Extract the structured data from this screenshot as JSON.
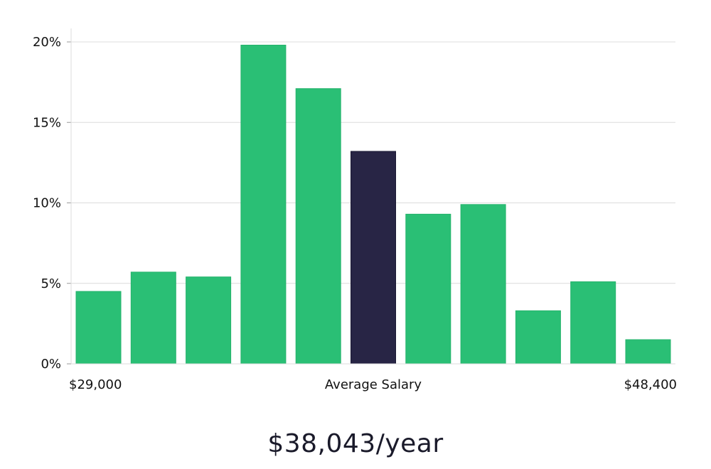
{
  "chart_data": {
    "type": "bar",
    "title": "",
    "xlabel": "Average Salary",
    "ylabel": "",
    "x_start_label": "$29,000",
    "x_end_label": "$48,400",
    "ylim": [
      0,
      20
    ],
    "yticks": [
      {
        "value": 0,
        "label": "0%"
      },
      {
        "value": 5,
        "label": "5%"
      },
      {
        "value": 10,
        "label": "10%"
      },
      {
        "value": 15,
        "label": "15%"
      },
      {
        "value": 20,
        "label": "20%"
      }
    ],
    "values": [
      4.5,
      5.7,
      5.4,
      19.8,
      17.1,
      13.2,
      9.3,
      9.9,
      3.3,
      5.1,
      1.5
    ],
    "highlight_index": 5,
    "colors": {
      "bar": "#2abf75",
      "highlight": "#282545",
      "grid": "#dcdcdc"
    }
  },
  "summary": {
    "salary_text": "$38,043/year"
  }
}
